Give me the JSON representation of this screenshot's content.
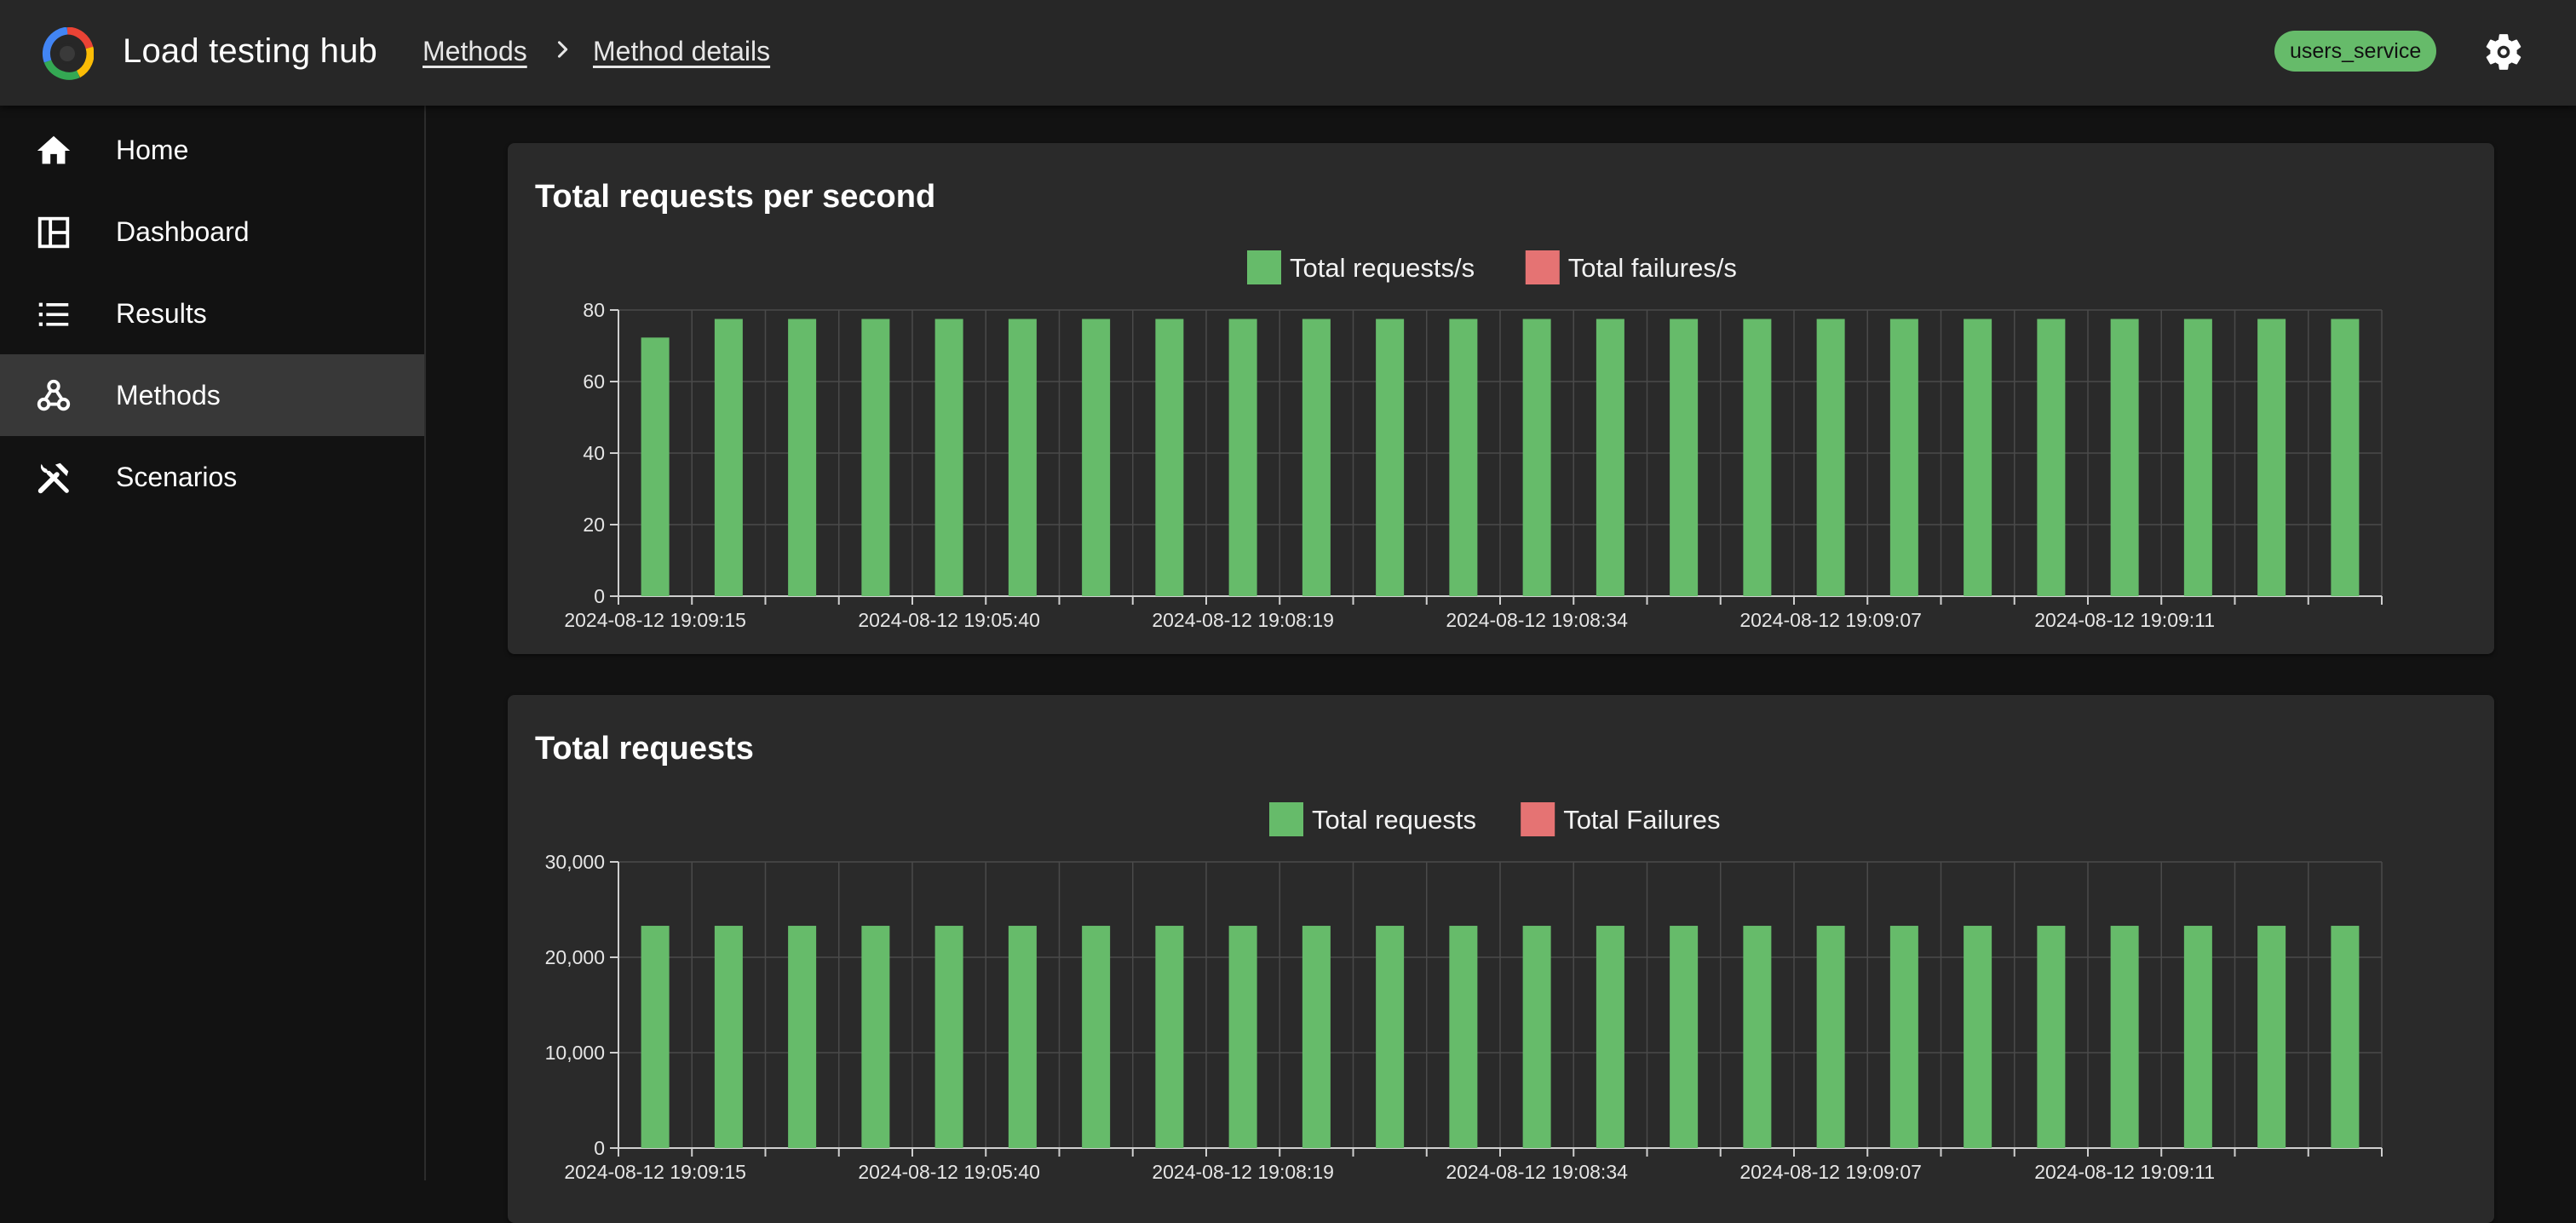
{
  "header": {
    "app_title": "Load testing hub",
    "breadcrumbs": [
      "Methods",
      "Method details"
    ],
    "service_chip": "users_service",
    "settings_icon": "gear-icon"
  },
  "sidebar": {
    "items": [
      {
        "label": "Home",
        "icon": "home-icon",
        "active": false
      },
      {
        "label": "Dashboard",
        "icon": "dashboard-icon",
        "active": false
      },
      {
        "label": "Results",
        "icon": "list-icon",
        "active": false
      },
      {
        "label": "Methods",
        "icon": "webhook-icon",
        "active": true
      },
      {
        "label": "Scenarios",
        "icon": "tools-icon",
        "active": false
      }
    ]
  },
  "colors": {
    "bar_green": "#66bb6a",
    "bar_red": "#e57373",
    "card_bg": "#2a2a2a",
    "grid": "#4a4a4a"
  },
  "cards": [
    {
      "title": "Total requests per second"
    },
    {
      "title": "Total requests"
    }
  ],
  "chart_data": [
    {
      "type": "bar",
      "title": "Total requests per second",
      "legend_position": "top-center",
      "grid": true,
      "x_tick_labels": [
        "2024-08-12 19:09:15",
        "2024-08-12 19:05:40",
        "2024-08-12 19:08:19",
        "2024-08-12 19:08:34",
        "2024-08-12 19:09:07",
        "2024-08-12 19:09:11"
      ],
      "ylim": [
        0,
        80
      ],
      "y_ticks": [
        "0",
        "20",
        "40",
        "60",
        "80"
      ],
      "series": [
        {
          "name": "Total requests/s",
          "color": "#66bb6a",
          "values": [
            72.3,
            77.5,
            77.5,
            77.5,
            77.5,
            77.5,
            77.5,
            77.5,
            77.5,
            77.5,
            77.5,
            77.5,
            77.5,
            77.5,
            77.5,
            77.5,
            77.5,
            77.5,
            77.5,
            77.5,
            77.5,
            77.5,
            77.5,
            77.5
          ]
        },
        {
          "name": "Total failures/s",
          "color": "#e57373",
          "values": [
            0,
            0,
            0,
            0,
            0,
            0,
            0,
            0,
            0,
            0,
            0,
            0,
            0,
            0,
            0,
            0,
            0,
            0,
            0,
            0,
            0,
            0,
            0,
            0
          ]
        }
      ]
    },
    {
      "type": "bar",
      "title": "Total requests",
      "legend_position": "top-center",
      "grid": true,
      "x_tick_labels": [
        "2024-08-12 19:09:15",
        "2024-08-12 19:05:40",
        "2024-08-12 19:08:19",
        "2024-08-12 19:08:34",
        "2024-08-12 19:09:07",
        "2024-08-12 19:09:11"
      ],
      "ylim": [
        0,
        30000
      ],
      "y_ticks": [
        "0",
        "10,000",
        "20,000",
        "30,000"
      ],
      "series": [
        {
          "name": "Total requests",
          "color": "#66bb6a",
          "values": [
            23300,
            23300,
            23300,
            23300,
            23300,
            23300,
            23300,
            23300,
            23300,
            23300,
            23300,
            23300,
            23300,
            23300,
            23300,
            23300,
            23300,
            23300,
            23300,
            23300,
            23300,
            23300,
            23300,
            23300
          ]
        },
        {
          "name": "Total Failures",
          "color": "#e57373",
          "values": [
            0,
            0,
            0,
            0,
            0,
            0,
            0,
            0,
            0,
            0,
            0,
            0,
            0,
            0,
            0,
            0,
            0,
            0,
            0,
            0,
            0,
            0,
            0,
            0
          ]
        }
      ]
    }
  ]
}
